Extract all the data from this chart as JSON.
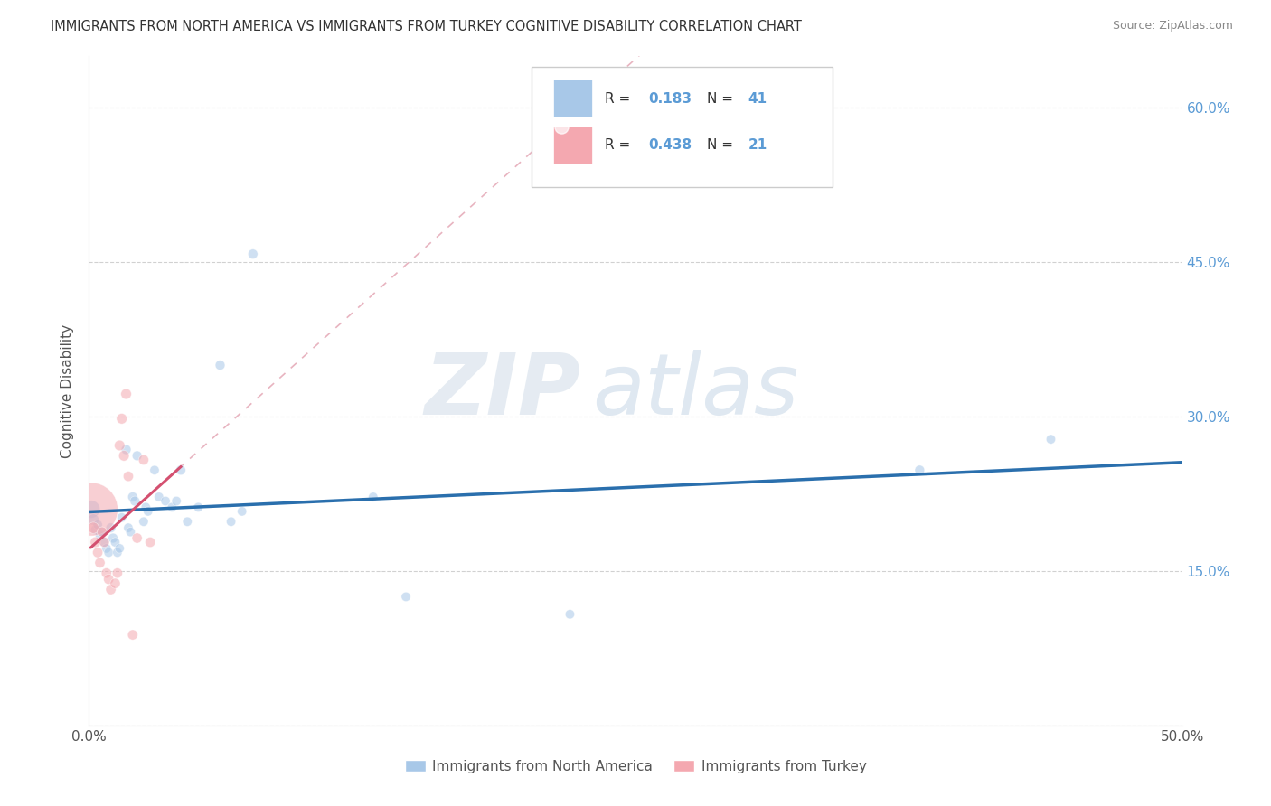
{
  "title": "IMMIGRANTS FROM NORTH AMERICA VS IMMIGRANTS FROM TURKEY COGNITIVE DISABILITY CORRELATION CHART",
  "source": "Source: ZipAtlas.com",
  "ylabel": "Cognitive Disability",
  "xlim": [
    0.0,
    0.5
  ],
  "ylim": [
    0.0,
    0.65
  ],
  "blue_color": "#a8c8e8",
  "pink_color": "#f4a8b0",
  "blue_line_color": "#2a6fad",
  "pink_line_color": "#d45070",
  "dashed_line_color": "#e8b4c0",
  "watermark_zip": "ZIP",
  "watermark_atlas": "atlas",
  "north_america_x": [
    0.001,
    0.002,
    0.003,
    0.004,
    0.005,
    0.006,
    0.007,
    0.008,
    0.009,
    0.01,
    0.011,
    0.012,
    0.013,
    0.014,
    0.015,
    0.017,
    0.018,
    0.019,
    0.02,
    0.021,
    0.022,
    0.025,
    0.026,
    0.027,
    0.03,
    0.032,
    0.035,
    0.038,
    0.04,
    0.042,
    0.045,
    0.05,
    0.06,
    0.065,
    0.07,
    0.075,
    0.13,
    0.145,
    0.22,
    0.38,
    0.44
  ],
  "north_america_y": [
    0.21,
    0.2,
    0.19,
    0.195,
    0.185,
    0.188,
    0.178,
    0.172,
    0.168,
    0.192,
    0.182,
    0.178,
    0.168,
    0.172,
    0.202,
    0.268,
    0.192,
    0.188,
    0.222,
    0.218,
    0.262,
    0.198,
    0.212,
    0.208,
    0.248,
    0.222,
    0.218,
    0.212,
    0.218,
    0.248,
    0.198,
    0.212,
    0.35,
    0.198,
    0.208,
    0.458,
    0.222,
    0.125,
    0.108,
    0.248,
    0.278
  ],
  "north_america_size": [
    200,
    80,
    60,
    55,
    55,
    55,
    60,
    55,
    55,
    60,
    60,
    55,
    55,
    55,
    55,
    60,
    55,
    55,
    60,
    60,
    60,
    55,
    55,
    55,
    55,
    55,
    55,
    55,
    55,
    60,
    55,
    55,
    60,
    55,
    55,
    60,
    55,
    55,
    55,
    60,
    55
  ],
  "turkey_x": [
    0.001,
    0.002,
    0.003,
    0.004,
    0.005,
    0.006,
    0.007,
    0.008,
    0.009,
    0.01,
    0.012,
    0.013,
    0.014,
    0.015,
    0.016,
    0.017,
    0.018,
    0.02,
    0.022,
    0.025,
    0.028
  ],
  "turkey_y": [
    0.21,
    0.192,
    0.178,
    0.168,
    0.158,
    0.188,
    0.178,
    0.148,
    0.142,
    0.132,
    0.138,
    0.148,
    0.272,
    0.298,
    0.262,
    0.322,
    0.242,
    0.088,
    0.182,
    0.258,
    0.178
  ],
  "turkey_size": [
    1800,
    80,
    70,
    65,
    65,
    65,
    65,
    65,
    65,
    65,
    65,
    65,
    70,
    70,
    70,
    70,
    65,
    65,
    65,
    65,
    65
  ],
  "legend_blue_label": "R =  0.183   N = 41",
  "legend_pink_label": "R =  0.438   N = 21",
  "legend_r1_val": "0.183",
  "legend_n1_val": "41",
  "legend_r2_val": "0.438",
  "legend_n2_val": "21",
  "bottom_label_blue": "Immigrants from North America",
  "bottom_label_pink": "Immigrants from Turkey"
}
